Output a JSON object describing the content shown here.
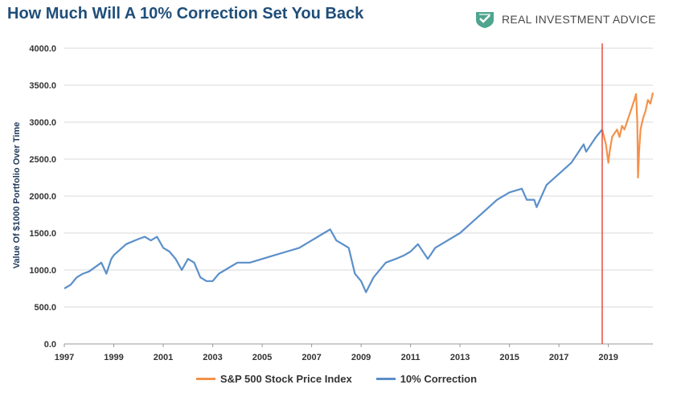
{
  "title": "How Much Will A 10% Correction Set You Back",
  "brand": {
    "name": "REAL INVESTMENT ADVICE",
    "logo_icon": "shield-check-icon"
  },
  "chart_data": {
    "type": "line",
    "ylabel": "Value Of $1000 Portfolio Over Time",
    "xlim": [
      1997,
      2020.8
    ],
    "ylim": [
      0,
      4000
    ],
    "x_ticks": [
      "1997",
      "1999",
      "2001",
      "2003",
      "2005",
      "2007",
      "2009",
      "2011",
      "2013",
      "2015",
      "2017",
      "2019"
    ],
    "y_ticks": [
      "0.0",
      "500.0",
      "1000.0",
      "1500.0",
      "2000.0",
      "2500.0",
      "3000.0",
      "3500.0",
      "4000.0"
    ],
    "grid": true,
    "legend_position": "bottom",
    "marker_line": {
      "x": 2018.75,
      "color": "#e74c3c"
    },
    "series": [
      {
        "name": "S&P 500 Stock Price Index",
        "color": "#f4914a",
        "x": [
          2018.75,
          2018.9,
          2019.0,
          2019.05,
          2019.15,
          2019.25,
          2019.35,
          2019.45,
          2019.55,
          2019.65,
          2019.75,
          2019.85,
          2019.95,
          2020.05,
          2020.12,
          2020.17,
          2020.2,
          2020.24,
          2020.3,
          2020.4,
          2020.5,
          2020.6,
          2020.7,
          2020.8
        ],
        "values": [
          2900,
          2700,
          2450,
          2600,
          2800,
          2850,
          2900,
          2800,
          2950,
          2900,
          3000,
          3100,
          3200,
          3300,
          3380,
          3000,
          2250,
          2600,
          2900,
          3050,
          3150,
          3300,
          3250,
          3400
        ]
      },
      {
        "name": "10% Correction",
        "color": "#5b8fc9",
        "x": [
          1997.0,
          1997.25,
          1997.5,
          1997.75,
          1998.0,
          1998.5,
          1998.7,
          1998.9,
          1999.0,
          1999.5,
          2000.0,
          2000.25,
          2000.5,
          2000.75,
          2001.0,
          2001.25,
          2001.5,
          2001.75,
          2002.0,
          2002.25,
          2002.5,
          2002.75,
          2003.0,
          2003.25,
          2003.5,
          2004.0,
          2004.5,
          2005.0,
          2005.5,
          2006.0,
          2006.5,
          2007.0,
          2007.5,
          2007.75,
          2008.0,
          2008.5,
          2008.75,
          2009.0,
          2009.2,
          2009.5,
          2010.0,
          2010.4,
          2010.75,
          2011.0,
          2011.3,
          2011.7,
          2012.0,
          2012.5,
          2013.0,
          2013.5,
          2014.0,
          2014.5,
          2015.0,
          2015.5,
          2015.7,
          2016.0,
          2016.1,
          2016.5,
          2017.0,
          2017.5,
          2018.0,
          2018.1,
          2018.5,
          2018.75
        ],
        "values": [
          750,
          800,
          900,
          950,
          980,
          1100,
          950,
          1150,
          1200,
          1350,
          1420,
          1450,
          1400,
          1450,
          1300,
          1250,
          1150,
          1000,
          1150,
          1100,
          900,
          850,
          850,
          950,
          1000,
          1100,
          1100,
          1150,
          1200,
          1250,
          1300,
          1400,
          1500,
          1550,
          1400,
          1300,
          950,
          850,
          700,
          900,
          1100,
          1150,
          1200,
          1250,
          1350,
          1150,
          1300,
          1400,
          1500,
          1650,
          1800,
          1950,
          2050,
          2100,
          1950,
          1950,
          1850,
          2150,
          2300,
          2450,
          2700,
          2600,
          2800,
          2900
        ]
      }
    ]
  }
}
